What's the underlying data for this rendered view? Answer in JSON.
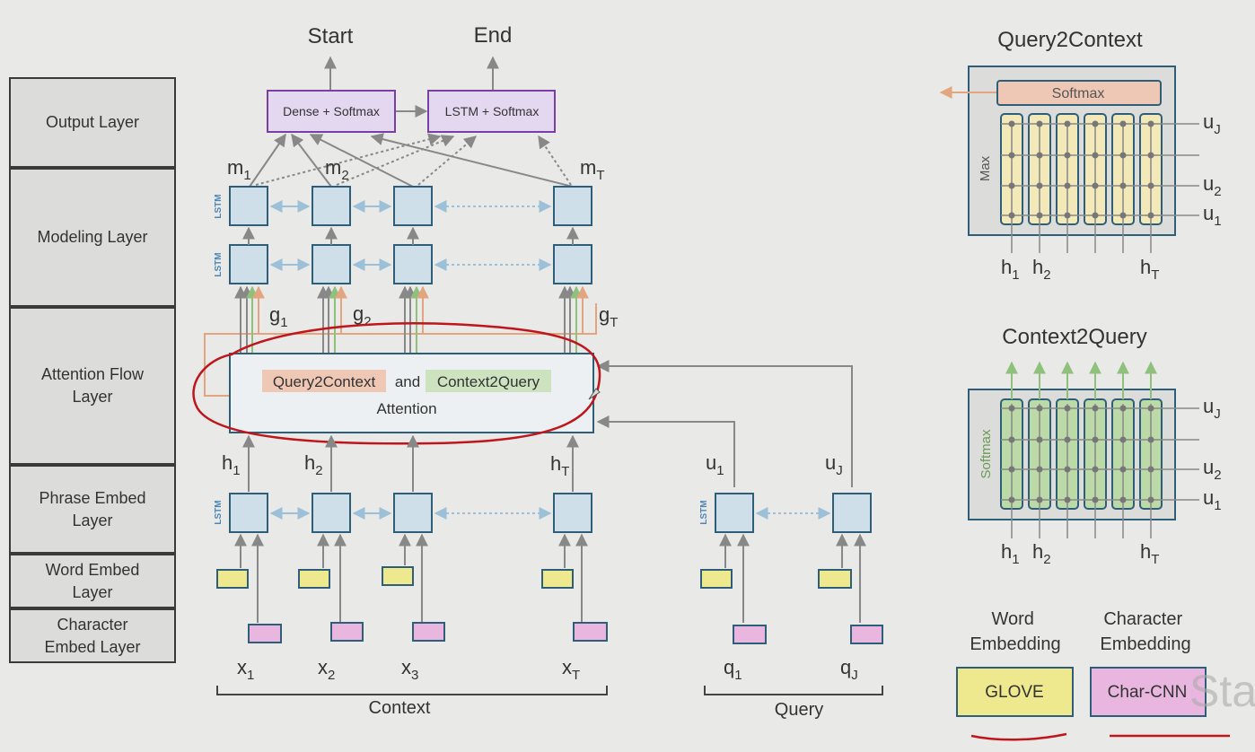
{
  "layers": [
    {
      "label": "Output Layer"
    },
    {
      "label": "Modeling Layer"
    },
    {
      "label": "Attention Flow\nLayer"
    },
    {
      "label": "Phrase Embed\nLayer"
    },
    {
      "label": "Word Embed\nLayer"
    },
    {
      "label": "Character\nEmbed Layer"
    }
  ],
  "output": {
    "start_label": "Start",
    "end_label": "End",
    "dense_softmax": "Dense + Softmax",
    "lstm_softmax": "LSTM + Softmax"
  },
  "lstm_tag": "LSTM",
  "modeling": {
    "m1": "m",
    "m1_sub": "1",
    "m2": "m",
    "m2_sub": "2",
    "mT": "m",
    "mT_sub": "T"
  },
  "attention": {
    "g1": "g",
    "g1_sub": "1",
    "g2": "g",
    "g2_sub": "2",
    "gT": "g",
    "gT_sub": "T",
    "q2c": "Query2Context",
    "and": "and",
    "c2q": "Context2Query",
    "attention": "Attention"
  },
  "phrase": {
    "h1": "h",
    "h1_sub": "1",
    "h2": "h",
    "h2_sub": "2",
    "hT": "h",
    "hT_sub": "T",
    "u1": "u",
    "u1_sub": "1",
    "uJ": "u",
    "uJ_sub": "J"
  },
  "inputs": {
    "x1": "x",
    "x1_sub": "1",
    "x2": "x",
    "x2_sub": "2",
    "x3": "x",
    "x3_sub": "3",
    "xT": "x",
    "xT_sub": "T",
    "q1": "q",
    "q1_sub": "1",
    "qJ": "q",
    "qJ_sub": "J",
    "context_label": "Context",
    "query_label": "Query"
  },
  "q2c_panel": {
    "title": "Query2Context",
    "softmax": "Softmax",
    "max": "Max",
    "uJ": "u",
    "uJ_sub": "J",
    "u2": "u",
    "u2_sub": "2",
    "u1": "u",
    "u1_sub": "1",
    "h1": "h",
    "h1_sub": "1",
    "h2": "h",
    "h2_sub": "2",
    "hT": "h",
    "hT_sub": "T"
  },
  "c2q_panel": {
    "title": "Context2Query",
    "softmax": "Softmax",
    "uJ": "u",
    "uJ_sub": "J",
    "u2": "u",
    "u2_sub": "2",
    "u1": "u",
    "u1_sub": "1",
    "h1": "h",
    "h1_sub": "1",
    "h2": "h",
    "h2_sub": "2",
    "hT": "h",
    "hT_sub": "T"
  },
  "legend": {
    "word_embedding": "Word\nEmbedding",
    "char_embedding": "Character\nEmbedding",
    "glove": "GLOVE",
    "char_cnn": "Char-CNN"
  },
  "watermark": "Sta",
  "colors": {
    "lstm_box": "#cfdfe9",
    "lstm_border": "#2f5f78",
    "output_box": "#e4d8f0",
    "output_border": "#7a3fa5",
    "word_box": "#eee88e",
    "char_box": "#e8b6df",
    "q2c_tag": "#efc7b5",
    "c2q_tag": "#cde3c0",
    "annotation": "#c0151c"
  }
}
